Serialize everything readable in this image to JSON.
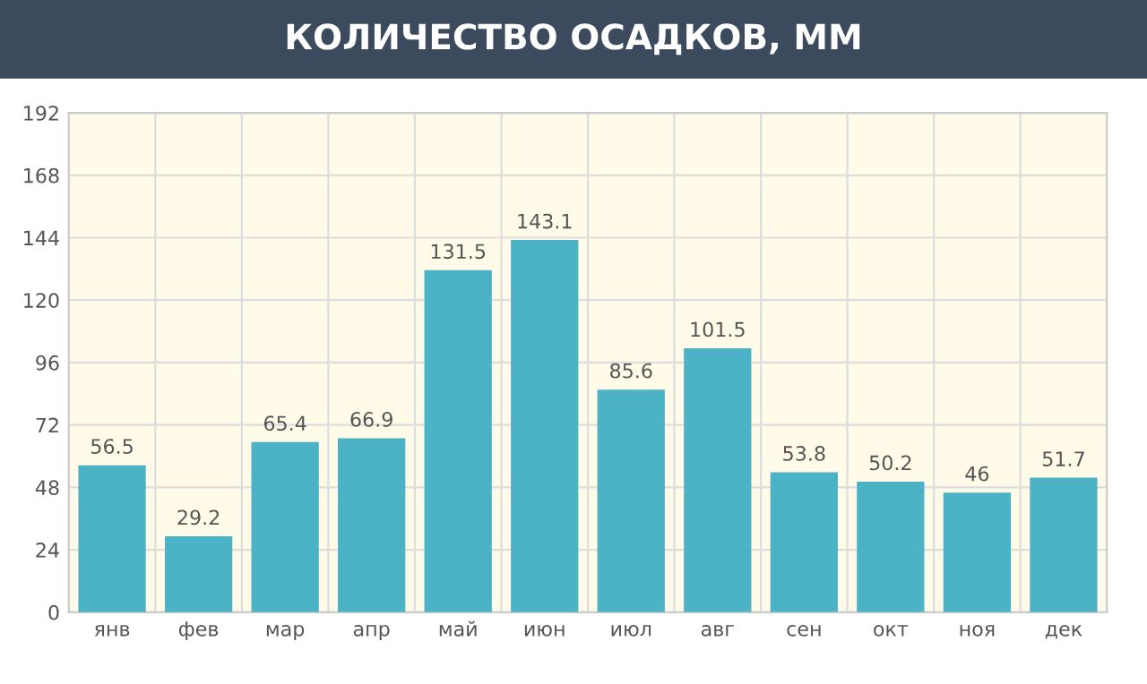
{
  "chart_data": {
    "type": "bar",
    "title": "КОЛИЧЕСТВО ОСАДКОВ, ММ",
    "categories": [
      "янв",
      "фев",
      "мар",
      "апр",
      "май",
      "июн",
      "июл",
      "авг",
      "сен",
      "окт",
      "ноя",
      "дек"
    ],
    "values": [
      56.5,
      29.2,
      65.4,
      66.9,
      131.5,
      143.1,
      85.6,
      101.5,
      53.8,
      50.2,
      46,
      51.7
    ],
    "color": "#4cb3c7",
    "ylim": [
      0,
      192
    ],
    "yticks": [
      0,
      24,
      48,
      72,
      96,
      120,
      144,
      168,
      192
    ],
    "grid": true,
    "data_labels": true
  }
}
